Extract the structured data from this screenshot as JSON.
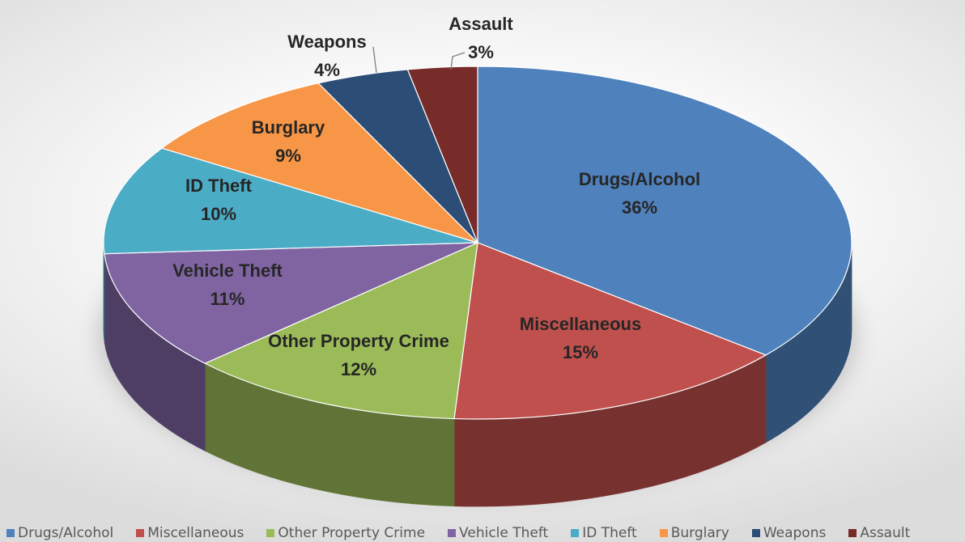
{
  "chart_data": {
    "type": "pie",
    "three_d": true,
    "title": "",
    "start_angle_deg": 0,
    "direction": "clockwise",
    "legend_position": "bottom",
    "slices": [
      {
        "label": "Drugs/Alcohol",
        "value": 36,
        "value_label": "36%",
        "color": "#4F81BD"
      },
      {
        "label": "Miscellaneous",
        "value": 15,
        "value_label": "15%",
        "color": "#C0504D"
      },
      {
        "label": "Other Property Crime",
        "value": 12,
        "value_label": "12%",
        "color": "#9BBB59"
      },
      {
        "label": "Vehicle Theft",
        "value": 11,
        "value_label": "11%",
        "color": "#8064A2"
      },
      {
        "label": "ID Theft",
        "value": 10,
        "value_label": "10%",
        "color": "#4BACC6"
      },
      {
        "label": "Burglary",
        "value": 9,
        "value_label": "9%",
        "color": "#F79646"
      },
      {
        "label": "Weapons",
        "value": 4,
        "value_label": "4%",
        "color": "#2C4D75"
      },
      {
        "label": "Assault",
        "value": 3,
        "value_label": "3%",
        "color": "#772C2A"
      }
    ]
  }
}
